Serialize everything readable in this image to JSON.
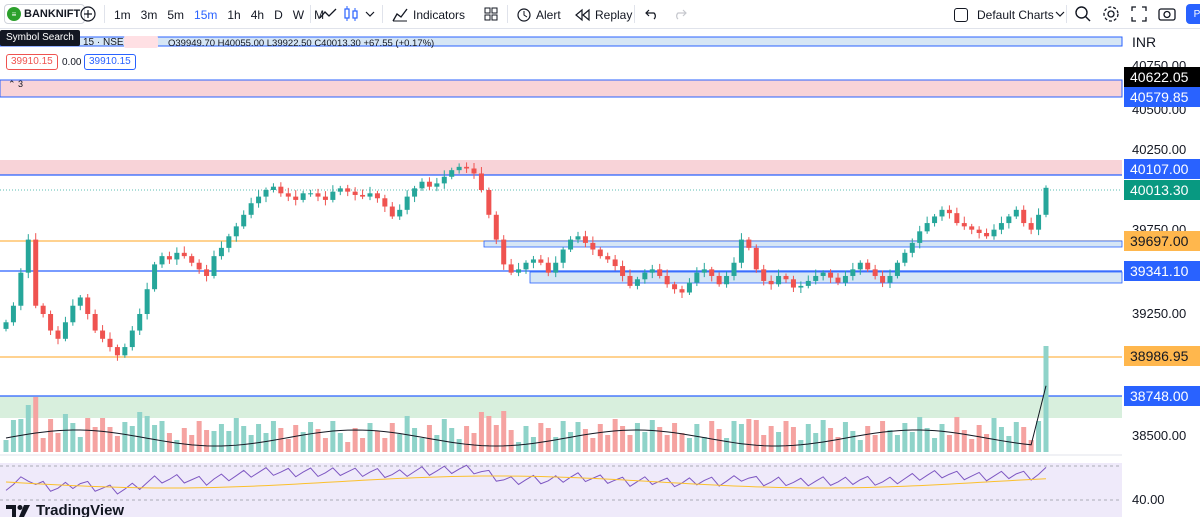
{
  "toolbar": {
    "symbol": "BANKNIFT",
    "timeframes": [
      "1m",
      "3m",
      "5m",
      "15m",
      "1h",
      "4h",
      "D",
      "W",
      "M"
    ],
    "active_timeframe": "15m",
    "indicators_label": "Indicators",
    "alert_label": "Alert",
    "replay_label": "Replay",
    "layout_label": "Default Charts",
    "publish_label": "P"
  },
  "tooltip": {
    "symbol_search": "Symbol Search"
  },
  "legend": {
    "symbol_line": "F · 15 · NSE",
    "ohlc": "O39949.70 H40055.00 L39922.50 C40013.30 +67.55 (+0.17%)",
    "bid": "39910.15",
    "spread": "0.00",
    "ask": "39910.15",
    "collapsed_count": "3"
  },
  "axis": {
    "currency": "INR",
    "ticks": [
      "40750.00",
      "40500.00",
      "40250.00",
      "39750.00",
      "39500.00",
      "39250.00",
      "38500.00",
      "40.00"
    ]
  },
  "price_labels": [
    {
      "value": "40622.05",
      "bg": "#000000",
      "color": "#ffffff"
    },
    {
      "value": "40579.85",
      "bg": "#2962ff",
      "color": "#ffffff"
    },
    {
      "value": "40107.00",
      "bg": "#2962ff",
      "color": "#ffffff"
    },
    {
      "value": "40013.30",
      "bg": "#089981",
      "color": "#ffffff"
    },
    {
      "value": "39697.00",
      "bg": "#ffb74d",
      "color": "#131722"
    },
    {
      "value": "39341.10",
      "bg": "#2962ff",
      "color": "#ffffff"
    },
    {
      "value": "38986.95",
      "bg": "#ffb74d",
      "color": "#131722"
    },
    {
      "value": "38748.00",
      "bg": "#2962ff",
      "color": "#ffffff"
    }
  ],
  "colors": {
    "up": "#26a69a",
    "down": "#ef5350",
    "zone_pink": "#f8d3d8",
    "zone_blue": "#d6e6f5",
    "zone_green": "#d8efdd",
    "line_blue": "#2962ff",
    "line_orange": "#ffb74d",
    "rsi_bg": "#efeafa"
  },
  "brand": "TradingView",
  "chart_data": {
    "type": "candlestick",
    "timeframe": "15m",
    "symbol": "BANKNIFTY",
    "ylim": [
      38400,
      40800
    ],
    "y_ticks": [
      40750,
      40500,
      40250,
      39750,
      39500,
      39250,
      38500
    ],
    "last_close": 40013.3,
    "levels": [
      40622.05,
      40579.85,
      40107.0,
      39697.0,
      39341.1,
      38986.95,
      38748.0
    ],
    "closes": [
      39200,
      39300,
      39500,
      39700,
      39300,
      39250,
      39150,
      39100,
      39200,
      39300,
      39350,
      39250,
      39150,
      39100,
      39050,
      39000,
      39050,
      39150,
      39250,
      39400,
      39550,
      39600,
      39580,
      39620,
      39600,
      39560,
      39520,
      39480,
      39600,
      39650,
      39720,
      39780,
      39850,
      39920,
      39960,
      40000,
      40020,
      39980,
      39960,
      39940,
      39980,
      39980,
      39960,
      39940,
      39990,
      40010,
      39990,
      39970,
      39960,
      39980,
      39950,
      39900,
      39840,
      39880,
      39960,
      40010,
      40050,
      40020,
      40040,
      40080,
      40120,
      40140,
      40130,
      40100,
      40000,
      39850,
      39700,
      39550,
      39500,
      39520,
      39560,
      39580,
      39560,
      39500,
      39560,
      39640,
      39700,
      39720,
      39680,
      39640,
      39600,
      39580,
      39540,
      39480,
      39420,
      39460,
      39500,
      39520,
      39480,
      39430,
      39400,
      39380,
      39440,
      39500,
      39520,
      39480,
      39430,
      39480,
      39560,
      39700,
      39650,
      39520,
      39450,
      39430,
      39480,
      39460,
      39410,
      39420,
      39450,
      39480,
      39500,
      39470,
      39440,
      39480,
      39520,
      39560,
      39520,
      39480,
      39440,
      39480,
      39560,
      39620,
      39680,
      39750,
      39800,
      39840,
      39880,
      39860,
      39800,
      39780,
      39760,
      39740,
      39720,
      39760,
      39800,
      39840,
      39880,
      39800,
      39760,
      39850,
      40013.3
    ],
    "rsi_level": 40.0
  }
}
